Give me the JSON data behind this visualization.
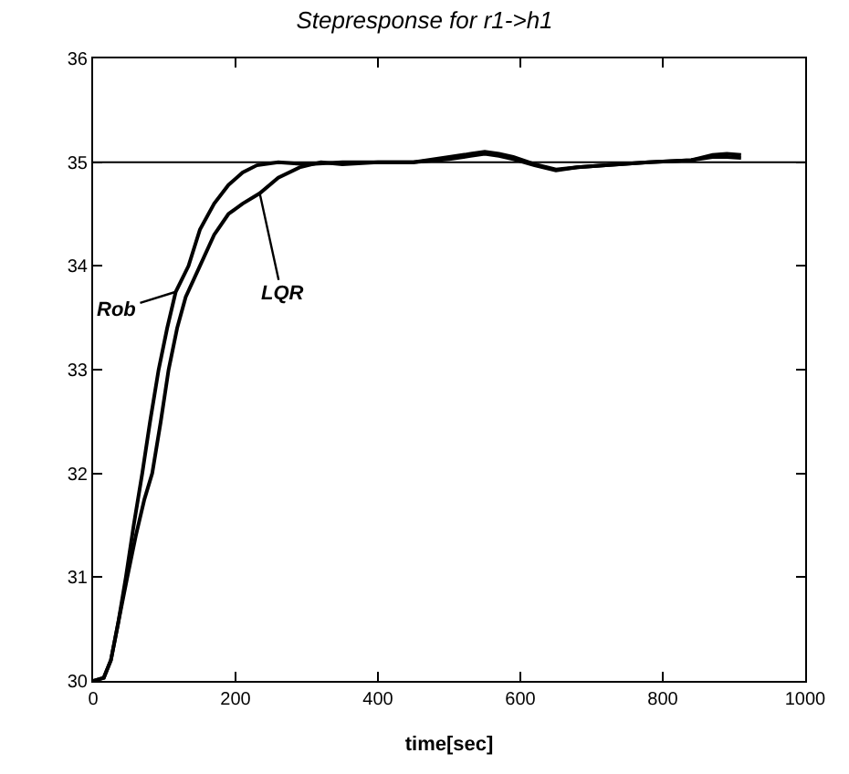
{
  "chart_data": {
    "type": "line",
    "title": "Stepresponse for r1->h1",
    "xlabel": "time[sec]",
    "xlim": [
      0,
      1000
    ],
    "xticks": [
      0,
      200,
      400,
      600,
      800,
      1000
    ],
    "ylim": [
      30,
      36
    ],
    "yticks": [
      30,
      31,
      32,
      33,
      34,
      35,
      36
    ],
    "marker": "none",
    "line_style": "solid",
    "series": [
      {
        "color": "#000000",
        "x": [
          0,
          15,
          25,
          35,
          46,
          57,
          69,
          80,
          92,
          104,
          116,
          134,
          150,
          170,
          190,
          210,
          230,
          260,
          300,
          350,
          400,
          450,
          500,
          530,
          550,
          570,
          590,
          620,
          650,
          680,
          720,
          780,
          840,
          870,
          890,
          910
        ],
        "values": [
          30,
          30.03,
          30.2,
          30.55,
          31.0,
          31.5,
          32.0,
          32.5,
          33.0,
          33.4,
          33.75,
          34.0,
          34.35,
          34.6,
          34.78,
          34.9,
          34.97,
          35.0,
          34.98,
          35.0,
          35.0,
          35.0,
          35.05,
          35.08,
          35.1,
          35.08,
          35.05,
          34.98,
          34.93,
          34.95,
          34.97,
          35.0,
          35.02,
          35.07,
          35.08,
          35.07
        ]
      },
      {
        "color": "#000000",
        "x": [
          0,
          15,
          25,
          35,
          48,
          60,
          72,
          83,
          95,
          106,
          118,
          130,
          150,
          170,
          190,
          210,
          234,
          260,
          290,
          320,
          350,
          400,
          450,
          500,
          530,
          550,
          570,
          590,
          620,
          650,
          680,
          720,
          780,
          840,
          870,
          890,
          910
        ],
        "values": [
          30,
          30.03,
          30.2,
          30.55,
          31.0,
          31.4,
          31.75,
          32.0,
          32.5,
          33.0,
          33.4,
          33.7,
          34.0,
          34.3,
          34.5,
          34.6,
          34.7,
          34.85,
          34.95,
          35.0,
          34.98,
          35.0,
          35.0,
          35.03,
          35.06,
          35.08,
          35.06,
          35.03,
          34.97,
          34.92,
          34.95,
          34.97,
          35.0,
          35.02,
          35.05,
          35.05,
          35.04
        ]
      }
    ],
    "ref_lines": [
      {
        "axis": "y",
        "value": 35,
        "color": "#000000"
      }
    ],
    "annotations": [
      {
        "text": "Rob",
        "x": 116,
        "y": 33.75
      },
      {
        "text": "LQR",
        "x": 234,
        "y": 34.7
      }
    ]
  }
}
